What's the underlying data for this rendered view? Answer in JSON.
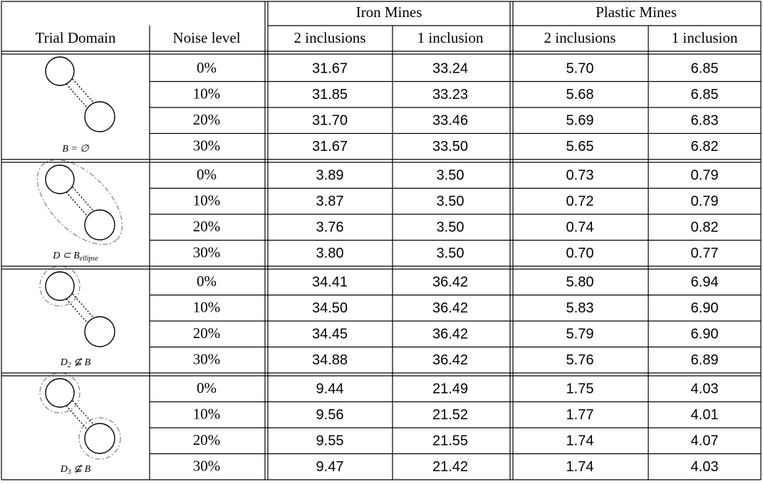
{
  "table": {
    "header_groups": [
      "Iron Mines",
      "Plastic Mines"
    ],
    "columns": [
      "Trial Domain",
      "Noise level",
      "2 inclusions",
      "1 inclusion",
      "2 inclusions",
      "1 inclusion"
    ],
    "groups": [
      {
        "caption": [
          {
            "text": "B = ∅"
          }
        ],
        "rows": [
          [
            "0%",
            "31.67",
            "33.24",
            "5.70",
            "6.85"
          ],
          [
            "10%",
            "31.85",
            "33.23",
            "5.68",
            "6.85"
          ],
          [
            "20%",
            "31.70",
            "33.46",
            "5.69",
            "6.83"
          ],
          [
            "30%",
            "31.67",
            "33.50",
            "5.65",
            "6.82"
          ]
        ]
      },
      {
        "caption": [
          {
            "text": "D ⊂ B"
          },
          {
            "text": "ellipse",
            "sub": true
          }
        ],
        "rows": [
          [
            "0%",
            "3.89",
            "3.50",
            "0.73",
            "0.79"
          ],
          [
            "10%",
            "3.87",
            "3.50",
            "0.72",
            "0.79"
          ],
          [
            "20%",
            "3.76",
            "3.50",
            "0.74",
            "0.82"
          ],
          [
            "30%",
            "3.80",
            "3.50",
            "0.70",
            "0.77"
          ]
        ]
      },
      {
        "caption": [
          {
            "text": "D"
          },
          {
            "text": "2",
            "sub": true
          },
          {
            "text": " ⊈ B"
          }
        ],
        "rows": [
          [
            "0%",
            "34.41",
            "36.42",
            "5.80",
            "6.94"
          ],
          [
            "10%",
            "34.50",
            "36.42",
            "5.83",
            "6.90"
          ],
          [
            "20%",
            "34.45",
            "36.42",
            "5.79",
            "6.90"
          ],
          [
            "30%",
            "34.88",
            "36.42",
            "5.76",
            "6.89"
          ]
        ]
      },
      {
        "caption": [
          {
            "text": "D"
          },
          {
            "text": "3",
            "sub": true
          },
          {
            "text": " ⊈ B"
          }
        ],
        "rows": [
          [
            "0%",
            "9.44",
            "21.49",
            "1.75",
            "4.03"
          ],
          [
            "10%",
            "9.56",
            "21.52",
            "1.77",
            "4.01"
          ],
          [
            "20%",
            "9.55",
            "21.55",
            "1.74",
            "4.07"
          ],
          [
            "30%",
            "9.47",
            "21.42",
            "1.74",
            "4.03"
          ]
        ]
      }
    ]
  }
}
